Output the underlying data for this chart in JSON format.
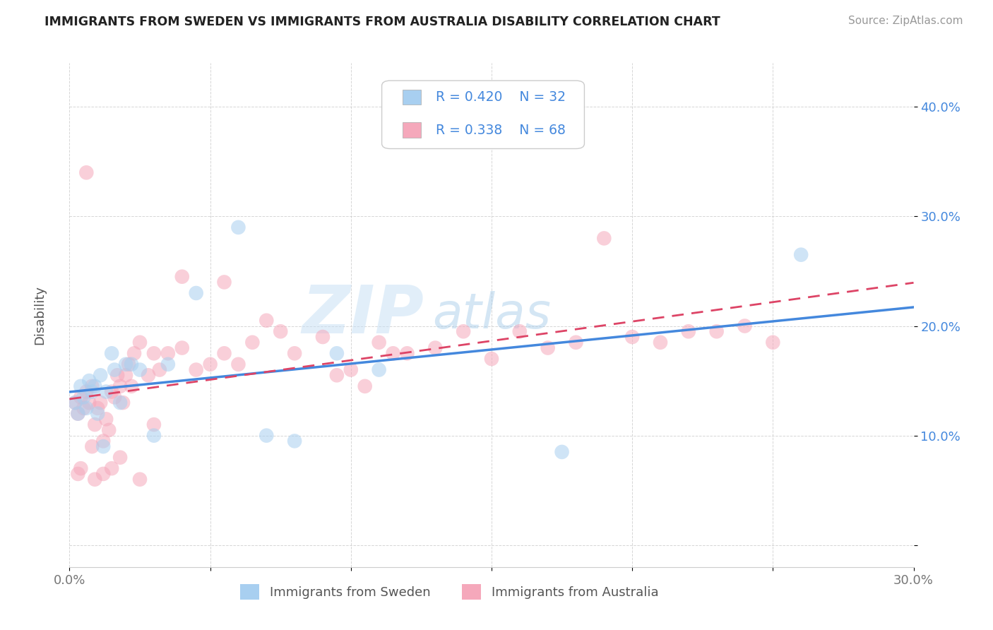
{
  "title": "IMMIGRANTS FROM SWEDEN VS IMMIGRANTS FROM AUSTRALIA DISABILITY CORRELATION CHART",
  "source": "Source: ZipAtlas.com",
  "ylabel": "Disability",
  "xlim": [
    0.0,
    0.3
  ],
  "ylim": [
    -0.02,
    0.44
  ],
  "y_ticks": [
    0.0,
    0.1,
    0.2,
    0.3,
    0.4
  ],
  "y_tick_labels": [
    "",
    "10.0%",
    "20.0%",
    "30.0%",
    "40.0%"
  ],
  "x_ticks": [
    0.0,
    0.05,
    0.1,
    0.15,
    0.2,
    0.25,
    0.3
  ],
  "x_tick_labels": [
    "0.0%",
    "",
    "",
    "",
    "",
    "",
    "30.0%"
  ],
  "color_sweden": "#a8cff0",
  "color_australia": "#f5a8bb",
  "line_color_sweden": "#4488dd",
  "line_color_australia": "#dd4466",
  "tick_color": "#4488dd",
  "watermark_zip": "ZIP",
  "watermark_atlas": "atlas",
  "sweden_x": [
    0.002,
    0.003,
    0.004,
    0.005,
    0.006,
    0.007,
    0.008,
    0.009,
    0.01,
    0.011,
    0.012,
    0.013,
    0.015,
    0.016,
    0.018,
    0.02,
    0.022,
    0.025,
    0.03,
    0.035,
    0.045,
    0.06,
    0.07,
    0.08,
    0.095,
    0.11,
    0.175,
    0.26
  ],
  "sweden_y": [
    0.13,
    0.12,
    0.145,
    0.135,
    0.125,
    0.15,
    0.14,
    0.145,
    0.12,
    0.155,
    0.09,
    0.14,
    0.175,
    0.16,
    0.13,
    0.165,
    0.165,
    0.16,
    0.1,
    0.165,
    0.23,
    0.29,
    0.1,
    0.095,
    0.175,
    0.16,
    0.085,
    0.265
  ],
  "australia_x": [
    0.002,
    0.003,
    0.004,
    0.005,
    0.006,
    0.007,
    0.008,
    0.008,
    0.009,
    0.01,
    0.011,
    0.012,
    0.013,
    0.014,
    0.015,
    0.016,
    0.017,
    0.018,
    0.019,
    0.02,
    0.021,
    0.022,
    0.023,
    0.025,
    0.028,
    0.03,
    0.032,
    0.035,
    0.04,
    0.045,
    0.05,
    0.055,
    0.06,
    0.065,
    0.07,
    0.075,
    0.08,
    0.09,
    0.1,
    0.11,
    0.12,
    0.13,
    0.14,
    0.15,
    0.16,
    0.17,
    0.18,
    0.19,
    0.2,
    0.21,
    0.22,
    0.23,
    0.24,
    0.25,
    0.04,
    0.055,
    0.03,
    0.095,
    0.105,
    0.115,
    0.025,
    0.018,
    0.015,
    0.012,
    0.009,
    0.006,
    0.004,
    0.003
  ],
  "australia_y": [
    0.13,
    0.12,
    0.135,
    0.125,
    0.14,
    0.13,
    0.145,
    0.09,
    0.11,
    0.125,
    0.13,
    0.095,
    0.115,
    0.105,
    0.14,
    0.135,
    0.155,
    0.145,
    0.13,
    0.155,
    0.165,
    0.145,
    0.175,
    0.185,
    0.155,
    0.175,
    0.16,
    0.175,
    0.18,
    0.16,
    0.165,
    0.175,
    0.165,
    0.185,
    0.205,
    0.195,
    0.175,
    0.19,
    0.16,
    0.185,
    0.175,
    0.18,
    0.195,
    0.17,
    0.195,
    0.18,
    0.185,
    0.28,
    0.19,
    0.185,
    0.195,
    0.195,
    0.2,
    0.185,
    0.245,
    0.24,
    0.11,
    0.155,
    0.145,
    0.175,
    0.06,
    0.08,
    0.07,
    0.065,
    0.06,
    0.34,
    0.07,
    0.065
  ]
}
